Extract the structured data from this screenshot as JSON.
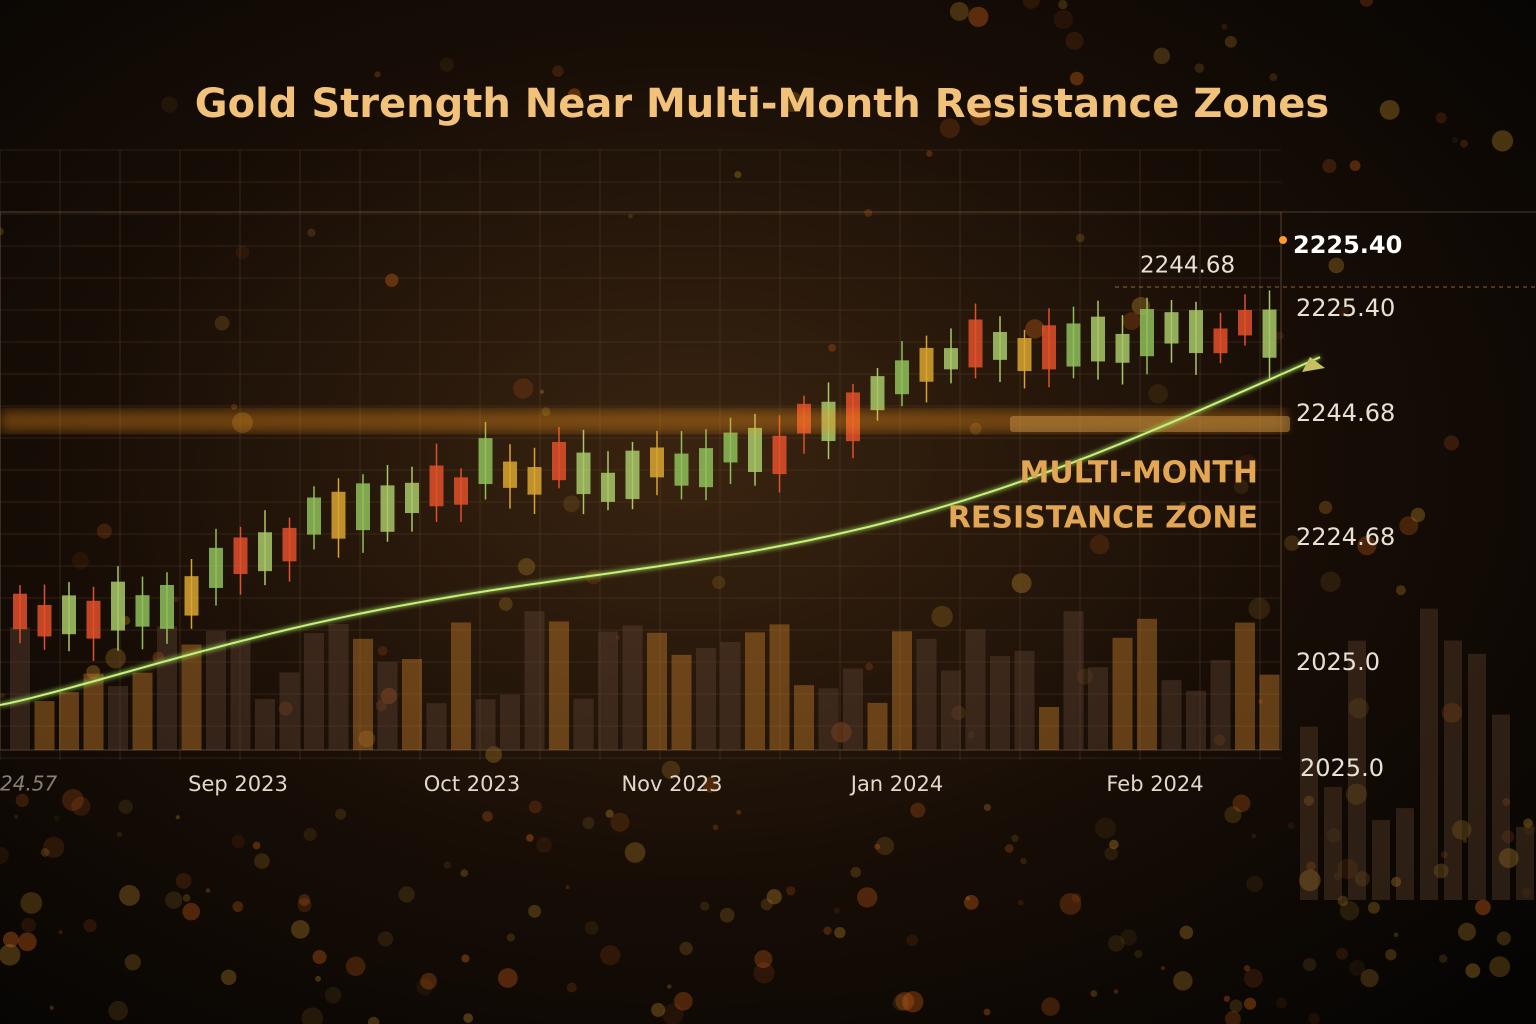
{
  "title": "Gold Strength Near Multi-Month Resistance Zones",
  "price_tag": "2225.40",
  "resistance_callout": "2244.68",
  "axis_labels": [
    "2225.40",
    "2244.68",
    "2224.68",
    "2025.0",
    "2025.0"
  ],
  "x_labels": [
    "24.57",
    "Sep 2023",
    "Oct 2023",
    "Nov 2023",
    "Jan 2024",
    "Feb 2024"
  ],
  "annotation": [
    "MULTI-MONTH",
    "RESISTANCE ZONE"
  ]
}
